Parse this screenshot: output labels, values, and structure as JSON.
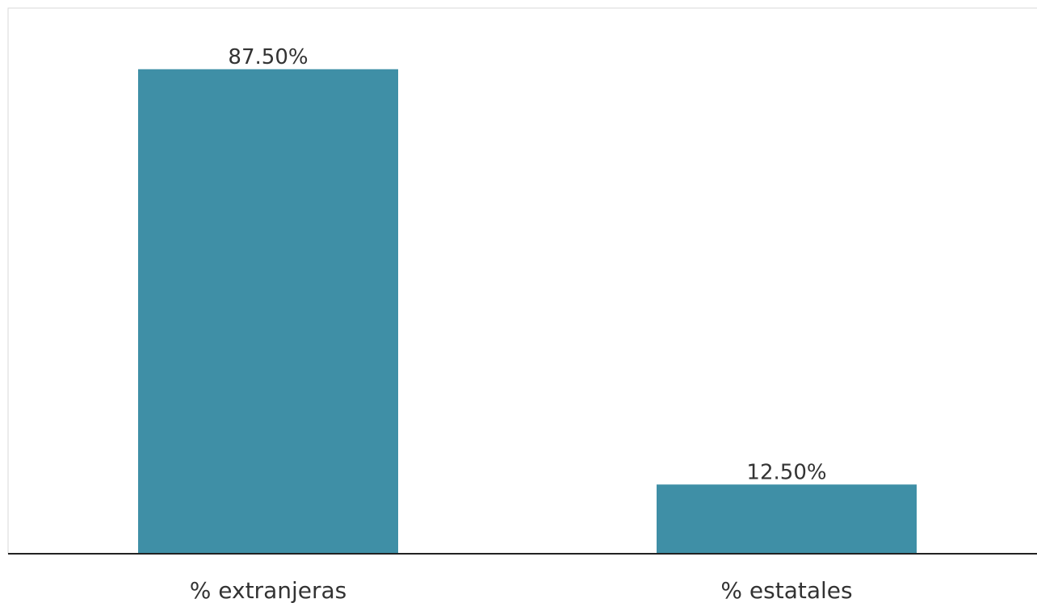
{
  "chart_data": {
    "type": "bar",
    "categories": [
      "% extranjeras",
      "% estatales"
    ],
    "values": [
      87.5,
      12.5
    ],
    "data_labels": [
      "87.50%",
      "12.50%"
    ],
    "title": "",
    "xlabel": "",
    "ylabel": "",
    "ylim": [
      0,
      100
    ],
    "grid": false,
    "legend": "none"
  },
  "colors": {
    "bar": "#3f8fa6",
    "axis": "#222222",
    "frame": "#d9d9d9",
    "label_text": "#333333",
    "background": "#ffffff"
  }
}
